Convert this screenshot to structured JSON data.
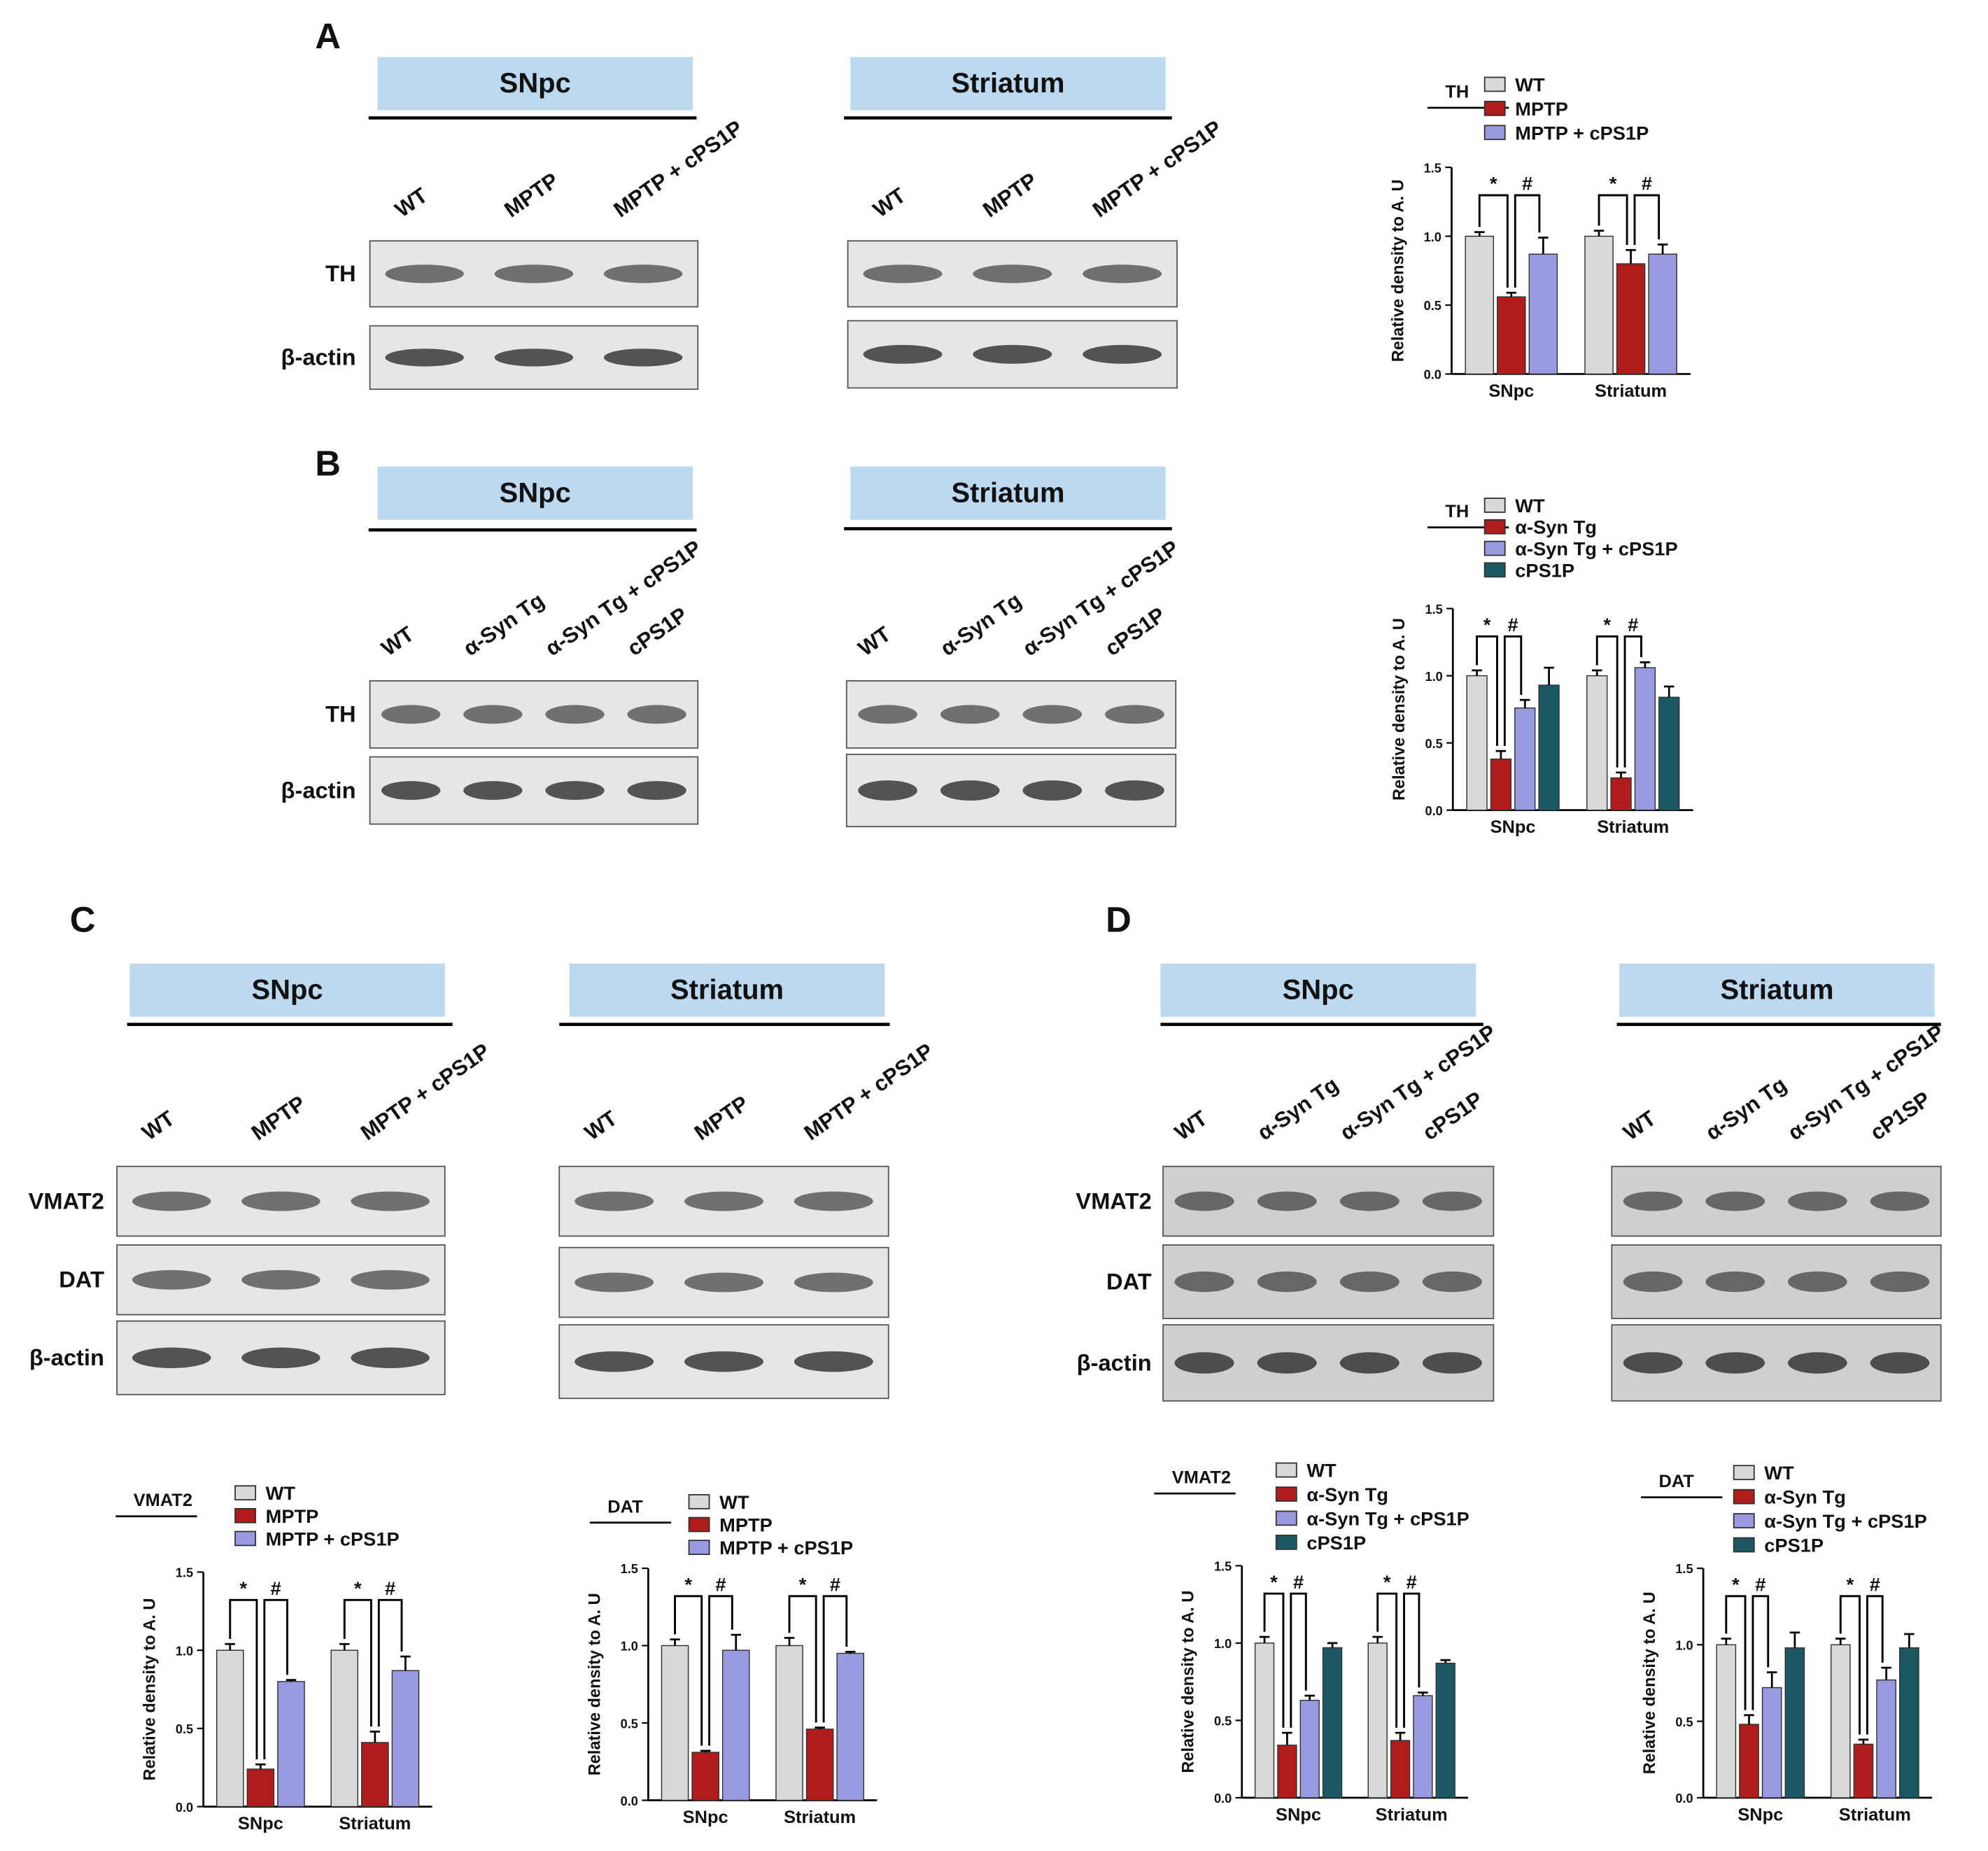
{
  "figure": {
    "panels": [
      {
        "letter": "A",
        "rows": [
          "TH",
          "β-actin"
        ],
        "blots": [
          {
            "tissue": "SNpc",
            "lanes": [
              "WT",
              "MPTP",
              "MPTP + cPS1P"
            ]
          },
          {
            "tissue": "Striatum",
            "lanes": [
              "WT",
              "MPTP",
              "MPTP + cPS1P"
            ]
          }
        ]
      },
      {
        "letter": "B",
        "rows": [
          "TH",
          "β-actin"
        ],
        "blots": [
          {
            "tissue": "SNpc",
            "lanes": [
              "WT",
              "α-Syn Tg",
              "α-Syn Tg + cPS1P",
              "cPS1P"
            ]
          },
          {
            "tissue": "Striatum",
            "lanes": [
              "WT",
              "α-Syn Tg",
              "α-Syn Tg + cPS1P",
              "cPS1P"
            ]
          }
        ]
      },
      {
        "letter": "C",
        "rows": [
          "VMAT2",
          "DAT",
          "β-actin"
        ],
        "blots": [
          {
            "tissue": "SNpc",
            "lanes": [
              "WT",
              "MPTP",
              "MPTP + cPS1P"
            ]
          },
          {
            "tissue": "Striatum",
            "lanes": [
              "WT",
              "MPTP",
              "MPTP + cPS1P"
            ]
          }
        ]
      },
      {
        "letter": "D",
        "rows": [
          "VMAT2",
          "DAT",
          "β-actin"
        ],
        "blots": [
          {
            "tissue": "SNpc",
            "lanes": [
              "WT",
              "α-Syn Tg",
              "α-Syn Tg + cPS1P",
              "cPS1P"
            ]
          },
          {
            "tissue": "Striatum",
            "lanes": [
              "WT",
              "α-Syn Tg",
              "α-Syn Tg + cPS1P",
              "cP1SP"
            ]
          }
        ]
      }
    ]
  },
  "chart_data": [
    {
      "type": "bar",
      "title": "TH",
      "y_label": "Relative density to A. U",
      "categories": [
        "SNpc",
        "Striatum"
      ],
      "series": [
        {
          "name": "WT",
          "color": "#d9d9d9",
          "values": [
            1.0,
            1.0
          ],
          "errors": [
            0.03,
            0.04
          ]
        },
        {
          "name": "MPTP",
          "color": "#b01c1c",
          "values": [
            0.56,
            0.8
          ],
          "errors": [
            0.03,
            0.1
          ]
        },
        {
          "name": "MPTP + cPS1P",
          "color": "#9a9ae0",
          "values": [
            0.87,
            0.87
          ],
          "errors": [
            0.12,
            0.07
          ]
        }
      ],
      "annotations": [
        "*",
        "#"
      ],
      "ylim": [
        0,
        1.5
      ],
      "yticks": [
        {
          "value": 0,
          "label": "0.0"
        },
        0.5,
        {
          "value": 1,
          "label": "1.0"
        },
        1.5
      ]
    },
    {
      "type": "bar",
      "title": "TH",
      "y_label": "Relative density to A. U",
      "categories": [
        "SNpc",
        "Striatum"
      ],
      "series": [
        {
          "name": "WT",
          "color": "#d9d9d9",
          "values": [
            1.0,
            1.0
          ],
          "errors": [
            0.04,
            0.04
          ]
        },
        {
          "name": "α-Syn Tg",
          "color": "#b01c1c",
          "values": [
            0.38,
            0.24
          ],
          "errors": [
            0.06,
            0.04
          ]
        },
        {
          "name": "α-Syn Tg + cPS1P",
          "color": "#9a9ae0",
          "values": [
            0.76,
            1.06
          ],
          "errors": [
            0.06,
            0.04
          ]
        },
        {
          "name": "cPS1P",
          "color": "#1b5962",
          "values": [
            0.93,
            0.84
          ],
          "errors": [
            0.13,
            0.08
          ]
        }
      ],
      "annotations": [
        "*",
        "#"
      ],
      "ylim": [
        0,
        1.5
      ],
      "yticks": [
        {
          "value": 0,
          "label": "0.0"
        },
        0.5,
        {
          "value": 1,
          "label": "1.0"
        },
        1.5
      ]
    },
    {
      "type": "bar",
      "title": "VMAT2",
      "y_label": "Relative density to A. U",
      "categories": [
        "SNpc",
        "Striatum"
      ],
      "series": [
        {
          "name": "WT",
          "color": "#d9d9d9",
          "values": [
            1.0,
            1.0
          ],
          "errors": [
            0.04,
            0.04
          ]
        },
        {
          "name": "MPTP",
          "color": "#b01c1c",
          "values": [
            0.24,
            0.41
          ],
          "errors": [
            0.03,
            0.07
          ]
        },
        {
          "name": "MPTP + cPS1P",
          "color": "#9a9ae0",
          "values": [
            0.8,
            0.87
          ],
          "errors": [
            0.01,
            0.09
          ]
        }
      ],
      "annotations": [
        "*",
        "#"
      ],
      "ylim": [
        0,
        1.5
      ],
      "yticks": [
        {
          "value": 0,
          "label": "0.0"
        },
        0.5,
        {
          "value": 1,
          "label": "1.0"
        },
        1.5
      ]
    },
    {
      "type": "bar",
      "title": "DAT",
      "y_label": "Relative density to A. U",
      "categories": [
        "SNpc",
        "Striatum"
      ],
      "series": [
        {
          "name": "WT",
          "color": "#d9d9d9",
          "values": [
            1.0,
            1.0
          ],
          "errors": [
            0.04,
            0.05
          ]
        },
        {
          "name": "MPTP",
          "color": "#b01c1c",
          "values": [
            0.31,
            0.46
          ],
          "errors": [
            0.01,
            0.01
          ]
        },
        {
          "name": "MPTP + cPS1P",
          "color": "#9a9ae0",
          "values": [
            0.97,
            0.95
          ],
          "errors": [
            0.1,
            0.01
          ]
        }
      ],
      "annotations": [
        "*",
        "#"
      ],
      "ylim": [
        0,
        1.5
      ],
      "yticks": [
        {
          "value": 0,
          "label": "0.0"
        },
        0.5,
        {
          "value": 1,
          "label": "1.0"
        },
        1.5
      ]
    },
    {
      "type": "bar",
      "title": "VMAT2",
      "y_label": "Relative density to A. U",
      "categories": [
        "SNpc",
        "Striatum"
      ],
      "series": [
        {
          "name": "WT",
          "color": "#d9d9d9",
          "values": [
            1.0,
            1.0
          ],
          "errors": [
            0.04,
            0.04
          ]
        },
        {
          "name": "α-Syn Tg",
          "color": "#b01c1c",
          "values": [
            0.34,
            0.37
          ],
          "errors": [
            0.08,
            0.05
          ]
        },
        {
          "name": "α-Syn Tg + cPS1P",
          "color": "#9a9ae0",
          "values": [
            0.63,
            0.66
          ],
          "errors": [
            0.03,
            0.02
          ]
        },
        {
          "name": "cPS1P",
          "color": "#1b5962",
          "values": [
            0.97,
            0.87
          ],
          "errors": [
            0.03,
            0.02
          ]
        }
      ],
      "annotations": [
        "*",
        "#"
      ],
      "ylim": [
        0,
        1.5
      ],
      "yticks": [
        {
          "value": 0,
          "label": "0.0"
        },
        0.5,
        {
          "value": 1,
          "label": "1.0"
        },
        1.5
      ]
    },
    {
      "type": "bar",
      "title": "DAT",
      "y_label": "Relative density to A. U",
      "categories": [
        "SNpc",
        "Striatum"
      ],
      "series": [
        {
          "name": "WT",
          "color": "#d9d9d9",
          "values": [
            1.0,
            1.0
          ],
          "errors": [
            0.04,
            0.04
          ]
        },
        {
          "name": "α-Syn Tg",
          "color": "#b01c1c",
          "values": [
            0.48,
            0.35
          ],
          "errors": [
            0.06,
            0.03
          ]
        },
        {
          "name": "α-Syn Tg + cPS1P",
          "color": "#9a9ae0",
          "values": [
            0.72,
            0.77
          ],
          "errors": [
            0.1,
            0.08
          ]
        },
        {
          "name": "cPS1P",
          "color": "#1b5962",
          "values": [
            0.98,
            0.98
          ],
          "errors": [
            0.1,
            0.09
          ]
        }
      ],
      "annotations": [
        "*",
        "#"
      ],
      "ylim": [
        0,
        1.5
      ],
      "yticks": [
        {
          "value": 0,
          "label": "0.0"
        },
        0.5,
        {
          "value": 1,
          "label": "1.0"
        },
        1.5
      ]
    }
  ]
}
